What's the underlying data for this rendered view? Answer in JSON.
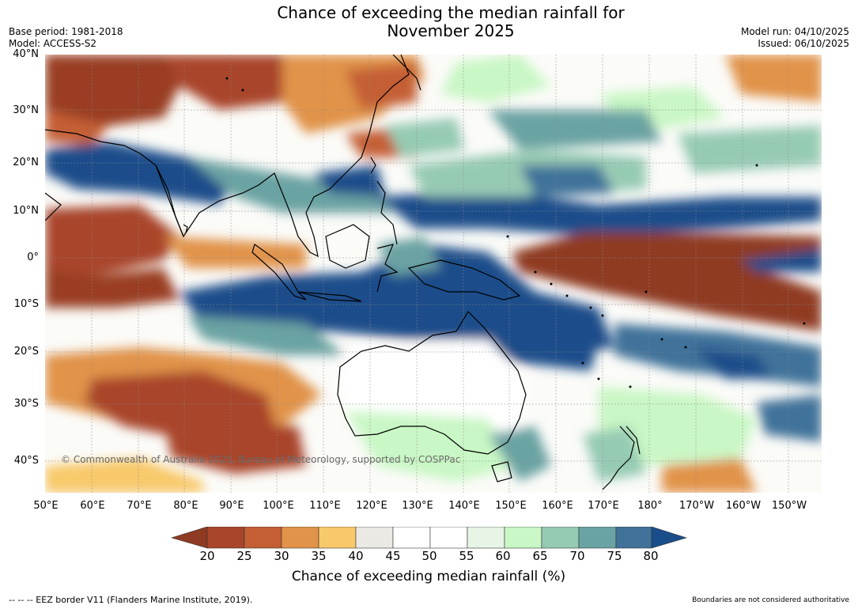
{
  "title_line1": "Chance of exceeding the median rainfall for",
  "title_line2": "November 2025",
  "meta_left": {
    "base_period": "Base period: 1981-2018",
    "model": "Model: ACCESS-S2"
  },
  "meta_right": {
    "model_run": "Model run: 04/10/2025",
    "issued": "Issued: 06/10/2025"
  },
  "latitudes": [
    "40°N",
    "30°N",
    "20°N",
    "10°N",
    "0°",
    "10°S",
    "20°S",
    "30°S",
    "40°S"
  ],
  "longitudes": [
    "50°E",
    "60°E",
    "70°E",
    "80°E",
    "90°E",
    "100°E",
    "110°E",
    "120°E",
    "130°E",
    "140°E",
    "150°E",
    "160°E",
    "170°E",
    "180°",
    "170°W",
    "160°W",
    "150°W"
  ],
  "copyright": "© Commonwealth of Australia 2025, Bureau of Meteorology, supported by COSPPac",
  "colorbar": {
    "ticks": [
      "20",
      "25",
      "30",
      "35",
      "40",
      "45",
      "50",
      "55",
      "60",
      "65",
      "70",
      "75",
      "80"
    ],
    "colors": [
      "#8f3a22",
      "#a9452b",
      "#c45f34",
      "#e1934a",
      "#f8c96b",
      "#ebe9e3",
      "#ffffff",
      "#ffffff",
      "#e6f5e6",
      "#c9f7c5",
      "#96cbb3",
      "#6aa3a3",
      "#41729a",
      "#1a4e8a"
    ],
    "label": "Chance of exceeding median rainfall (%)"
  },
  "footer_left": "--  --  -- EEZ border V11 (Flanders Marine Institute, 2019).",
  "footer_right": "Boundaries are not considered authoritative"
}
